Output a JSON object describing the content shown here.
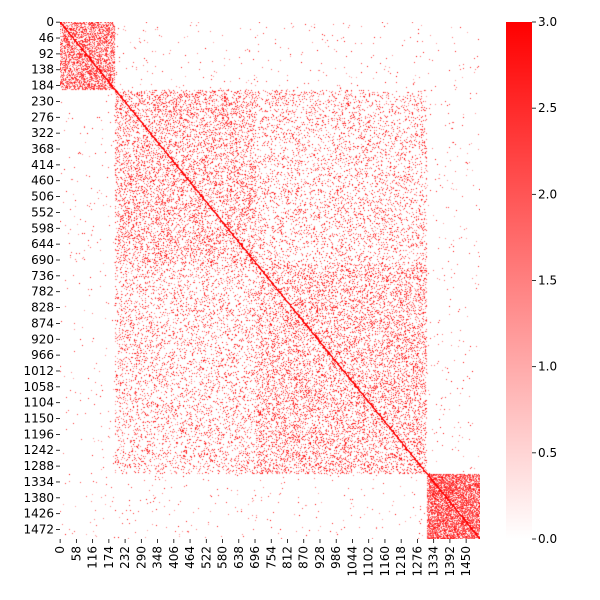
{
  "chart_data": {
    "type": "heatmap",
    "title": "",
    "xlabel": "",
    "ylabel": "",
    "n": 1500,
    "row_tick_labels": [
      "0",
      "46",
      "92",
      "138",
      "184",
      "230",
      "276",
      "322",
      "368",
      "414",
      "460",
      "506",
      "552",
      "598",
      "644",
      "690",
      "736",
      "782",
      "828",
      "874",
      "920",
      "966",
      "1012",
      "1058",
      "1104",
      "1150",
      "1196",
      "1242",
      "1288",
      "1334",
      "1380",
      "1426",
      "1472"
    ],
    "col_tick_labels": [
      "0",
      "58",
      "116",
      "174",
      "232",
      "290",
      "348",
      "406",
      "464",
      "522",
      "580",
      "638",
      "696",
      "754",
      "812",
      "870",
      "928",
      "986",
      "1044",
      "1102",
      "1160",
      "1218",
      "1276",
      "1334",
      "1392",
      "1450"
    ],
    "blocks": [
      {
        "start": 0,
        "end": 195,
        "density": 0.55
      },
      {
        "start": 195,
        "end": 1310,
        "density": 0.2
      },
      {
        "start": 1310,
        "end": 1500,
        "density": 0.75
      }
    ],
    "background_density": 0.01,
    "diagonal": "dense",
    "colorbar": {
      "min": 0.0,
      "max": 3.0,
      "colors": [
        "#ffffff",
        "#ff0000"
      ],
      "tick_labels": [
        "0.0",
        "0.5",
        "1.0",
        "1.5",
        "2.0",
        "2.5",
        "3.0"
      ]
    }
  }
}
